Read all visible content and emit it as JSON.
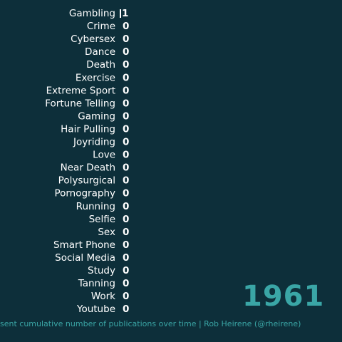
{
  "chart_data": {
    "type": "bar",
    "orientation": "horizontal",
    "categories": [
      "Gambling",
      "Crime",
      "Cybersex",
      "Dance",
      "Death",
      "Exercise",
      "Extreme Sport",
      "Fortune Telling",
      "Gaming",
      "Hair Pulling",
      "Joyriding",
      "Love",
      "Near Death",
      "Polysurgical",
      "Pornography",
      "Running",
      "Selfie",
      "Sex",
      "Smart Phone",
      "Social Media",
      "Study",
      "Tanning",
      "Work",
      "Youtube"
    ],
    "values": [
      1,
      0,
      0,
      0,
      0,
      0,
      0,
      0,
      0,
      0,
      0,
      0,
      0,
      0,
      0,
      0,
      0,
      0,
      0,
      0,
      0,
      0,
      0,
      0
    ],
    "value_labels": [
      "1",
      "0",
      "0",
      "0",
      "0",
      "0",
      "0",
      "0",
      "0",
      "0",
      "0",
      "0",
      "0",
      "0",
      "0",
      "0",
      "0",
      "0",
      "0",
      "0",
      "0",
      "0",
      "0",
      "0"
    ],
    "year": "1961",
    "caption": "sent cumulative number of publications over time | Rob Heirene (@rheirene)",
    "grid": false,
    "legend": "none"
  },
  "colors": {
    "background": "#0d2f3a",
    "text": "#ffffff",
    "accent": "#3aa6a6"
  }
}
